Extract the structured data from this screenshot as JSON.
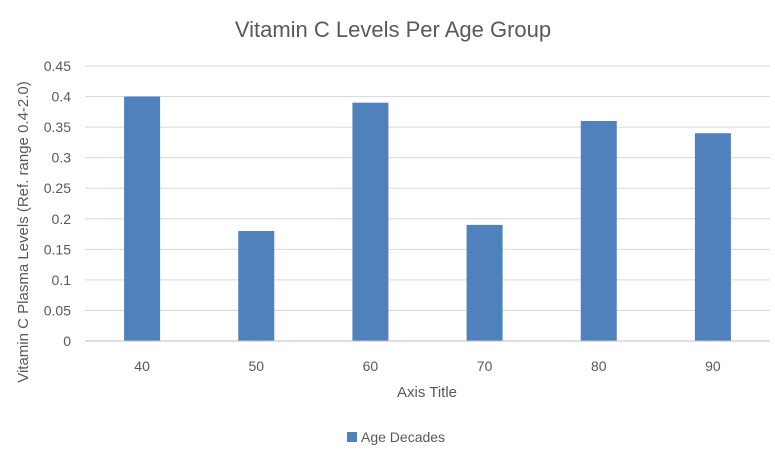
{
  "chart_data": {
    "type": "bar",
    "title": "Vitamin C Levels Per Age Group",
    "xlabel": "Axis Title",
    "ylabel": "Vitamin C Plasma Levels (Ref. range 0.4-2.0)",
    "categories": [
      "40",
      "50",
      "60",
      "70",
      "80",
      "90"
    ],
    "series": [
      {
        "name": "Age Decades",
        "values": [
          0.4,
          0.18,
          0.39,
          0.19,
          0.36,
          0.34
        ],
        "color": "#4f81bd"
      }
    ],
    "ylim": [
      0,
      0.45
    ],
    "yticks": [
      "0",
      "0.05",
      "0.1",
      "0.15",
      "0.2",
      "0.25",
      "0.3",
      "0.35",
      "0.4",
      "0.45"
    ],
    "grid": true,
    "legend_position": "bottom"
  }
}
